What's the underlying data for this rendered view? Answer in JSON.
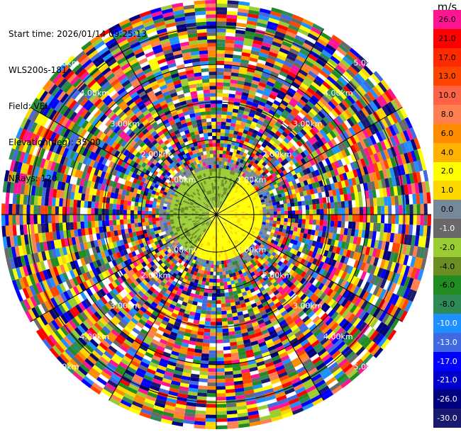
{
  "header": {
    "start_time": "Start time: 2026/01/14 09:25:13",
    "site": "WLS200s-181",
    "field": "Field: VEL",
    "elevation": "Elevation(deg): 35.00",
    "nrays": "NRays: 120"
  },
  "legend": {
    "unit": "m/s",
    "ticks": [
      "26.0",
      "21.0",
      "17.0",
      "13.0",
      "10.0",
      "8.0",
      "6.0",
      "4.0",
      "2.0",
      "1.0",
      "0.0",
      "-1.0",
      "-2.0",
      "-4.0",
      "-6.0",
      "-8.0",
      "-10.0",
      "-13.0",
      "-17.0",
      "-21.0",
      "-26.0",
      "-30.0"
    ],
    "colors": [
      "#ff1493",
      "#ff0000",
      "#ff2a00",
      "#ff4500",
      "#ff6347",
      "#ff7f50",
      "#ff8c00",
      "#ffb300",
      "#ffff00",
      "#ffd700",
      "#778899",
      "#696969",
      "#9acd32",
      "#6b8e23",
      "#228b22",
      "#2e8b57",
      "#1e90ff",
      "#4169e1",
      "#0000ff",
      "#0000cd",
      "#000080",
      "#191970"
    ]
  },
  "range_rings": {
    "labels": [
      "1.00km",
      "2.00km",
      "3.00km",
      "4.00km",
      "5.00km"
    ]
  },
  "ppi": {
    "nrays": 120,
    "ngates": 60
  }
}
